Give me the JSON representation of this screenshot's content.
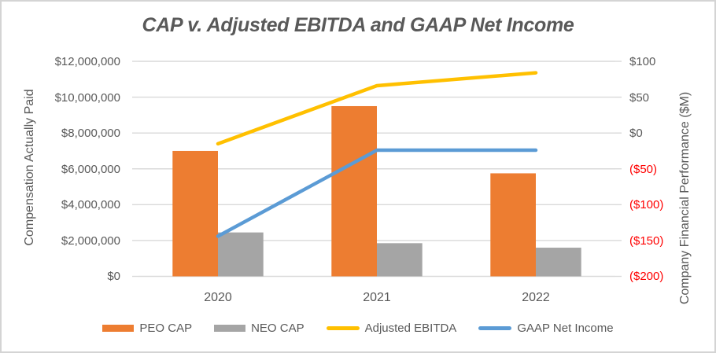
{
  "title": "CAP v. Adjusted EBITDA and GAAP Net Income",
  "left_axis": {
    "title": "Compensation Actually Paid",
    "tick_labels": [
      "$12,000,000",
      "$10,000,000",
      "$8,000,000",
      "$6,000,000",
      "$4,000,000",
      "$2,000,000",
      "$0"
    ]
  },
  "right_axis": {
    "title": "Company Financial Performance ($M)",
    "tick_labels": [
      "$100",
      "$50",
      "$0",
      "($50)",
      "($100)",
      "($150)",
      "($200)"
    ]
  },
  "categories": [
    "2020",
    "2021",
    "2022"
  ],
  "chart_data": {
    "type": "combo-bar-line",
    "title": "CAP v. Adjusted EBITDA and GAAP Net Income",
    "categories": [
      "2020",
      "2021",
      "2022"
    ],
    "series": [
      {
        "name": "PEO CAP",
        "type": "bar",
        "axis": "left",
        "color": "#ED7D31",
        "values": [
          7000000,
          9500000,
          5750000
        ]
      },
      {
        "name": "NEO CAP",
        "type": "bar",
        "axis": "left",
        "color": "#A5A5A5",
        "values": [
          2450000,
          1850000,
          1600000
        ]
      },
      {
        "name": "Adjusted EBITDA",
        "type": "line",
        "axis": "right",
        "color": "#FFC000",
        "values": [
          -15,
          66,
          84
        ]
      },
      {
        "name": "GAAP Net Income",
        "type": "line",
        "axis": "right",
        "color": "#5B9BD5",
        "values": [
          -144,
          -24,
          -24
        ]
      }
    ],
    "left_axis": {
      "label": "Compensation Actually Paid",
      "range": [
        0,
        12000000
      ],
      "tick_step": 2000000
    },
    "right_axis": {
      "label": "Company Financial Performance ($M)",
      "range": [
        -200,
        100
      ],
      "tick_step": 50
    },
    "grid": true,
    "legend_position": "bottom"
  },
  "colors": {
    "title_text": "#595959",
    "axis_text": "#595959",
    "negative_tick": "#FF0000",
    "gridline": "#D9D9D9",
    "border": "#D4D4D4",
    "background": "#FFFFFF"
  }
}
